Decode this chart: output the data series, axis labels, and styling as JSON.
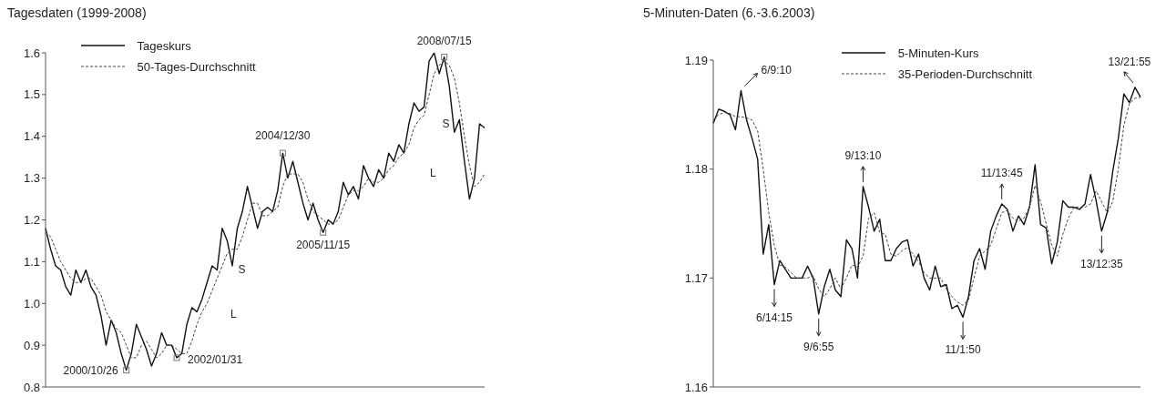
{
  "chart_data": [
    {
      "type": "line",
      "title": "Tagesdaten (1999-2008)",
      "tick_labels": "y",
      "legend": "top left",
      "categories": [
        null,
        null,
        null,
        null,
        null,
        null,
        null,
        null,
        null,
        null,
        null,
        null,
        null,
        null,
        null,
        null,
        null,
        null,
        null,
        null,
        null,
        null,
        null,
        null,
        null,
        null,
        null,
        null,
        null,
        null,
        null,
        null,
        null,
        null,
        null,
        null,
        null,
        null,
        null,
        null,
        null,
        null,
        null,
        null,
        null,
        null,
        null,
        null,
        null,
        null,
        null,
        null,
        null,
        null,
        null,
        null,
        null,
        null,
        null,
        null,
        null,
        null,
        null,
        null,
        null,
        null,
        null,
        null,
        null,
        null,
        null,
        null,
        null,
        null,
        null,
        null,
        null,
        null,
        null,
        null,
        null,
        null,
        null,
        null,
        null,
        null,
        null,
        null
      ],
      "series": [
        {
          "name": "Tageskurs",
          "color": "#111111",
          "line_style": "solid",
          "values": [
            1.18,
            1.13,
            1.09,
            1.08,
            1.04,
            1.02,
            1.08,
            1.05,
            1.08,
            1.04,
            1.02,
            0.97,
            0.9,
            0.96,
            0.93,
            0.88,
            0.84,
            0.88,
            0.95,
            0.92,
            0.89,
            0.85,
            0.88,
            0.93,
            0.9,
            0.9,
            0.87,
            0.88,
            0.95,
            0.99,
            0.98,
            1.01,
            1.05,
            1.09,
            1.08,
            1.18,
            1.15,
            1.09,
            1.18,
            1.22,
            1.28,
            1.23,
            1.18,
            1.22,
            1.23,
            1.22,
            1.27,
            1.36,
            1.3,
            1.34,
            1.29,
            1.24,
            1.2,
            1.24,
            1.2,
            1.17,
            1.2,
            1.19,
            1.22,
            1.29,
            1.26,
            1.28,
            1.25,
            1.33,
            1.3,
            1.28,
            1.32,
            1.3,
            1.36,
            1.34,
            1.38,
            1.36,
            1.43,
            1.48,
            1.46,
            1.47,
            1.58,
            1.6,
            1.55,
            1.59,
            1.52,
            1.41,
            1.44,
            1.34,
            1.25,
            1.3,
            1.43,
            1.42
          ]
        },
        {
          "name": "50-Tages-Durchschnitt",
          "color": "#444444",
          "line_style": "dashed",
          "values": [
            1.17,
            1.16,
            1.13,
            1.1,
            1.08,
            1.06,
            1.05,
            1.05,
            1.06,
            1.06,
            1.04,
            1.02,
            0.98,
            0.96,
            0.94,
            0.93,
            0.9,
            0.87,
            0.87,
            0.9,
            0.91,
            0.89,
            0.87,
            0.88,
            0.9,
            0.9,
            0.89,
            0.88,
            0.88,
            0.91,
            0.95,
            0.98,
            1.0,
            1.03,
            1.06,
            1.09,
            1.12,
            1.13,
            1.13,
            1.16,
            1.2,
            1.24,
            1.24,
            1.21,
            1.21,
            1.22,
            1.23,
            1.28,
            1.31,
            1.31,
            1.31,
            1.29,
            1.25,
            1.22,
            1.21,
            1.2,
            1.19,
            1.19,
            1.2,
            1.23,
            1.26,
            1.27,
            1.27,
            1.28,
            1.3,
            1.29,
            1.29,
            1.3,
            1.32,
            1.33,
            1.35,
            1.36,
            1.38,
            1.42,
            1.44,
            1.45,
            1.5,
            1.55,
            1.57,
            1.58,
            1.57,
            1.54,
            1.48,
            1.4,
            1.33,
            1.28,
            1.29,
            1.31
          ]
        }
      ],
      "ylim": [
        0.8,
        1.6
      ],
      "yticks": [
        0.8,
        0.9,
        {
          "value": 1.0,
          "label": "1.0"
        },
        1.1,
        1.2,
        1.3,
        1.4,
        1.5,
        1.6
      ],
      "annotations": [
        "2000/10/26",
        "2002/01/31",
        "2004/12/30",
        "2005/11/15",
        "2008/07/15",
        "S",
        "L",
        "S",
        "L"
      ]
    },
    {
      "type": "line",
      "title": "5-Minuten-Daten (6.-3.6.2003)",
      "tick_labels": "y",
      "legend": "top",
      "categories": [
        null,
        null,
        null,
        null,
        null,
        null,
        null,
        null,
        null,
        null,
        null,
        null,
        null,
        null,
        null,
        null,
        null,
        null,
        null,
        null,
        null,
        null,
        null,
        null,
        null,
        null,
        null,
        null,
        null,
        null,
        null,
        null,
        null,
        null,
        null,
        null,
        null,
        null,
        null,
        null,
        null,
        null,
        null,
        null,
        null,
        null,
        null,
        null,
        null,
        null,
        null,
        null,
        null,
        null,
        null,
        null,
        null,
        null,
        null,
        null,
        null,
        null,
        null,
        null,
        null,
        null,
        null,
        null,
        null,
        null,
        null,
        null,
        null,
        null,
        null,
        null,
        null,
        null
      ],
      "series": [
        {
          "name": "5-Minuten-Kurs",
          "color": "#111111",
          "line_style": "solid",
          "values": [
            1.1842,
            1.1855,
            1.1853,
            1.185,
            1.1836,
            1.1872,
            1.1845,
            1.1828,
            1.1809,
            1.1722,
            1.1749,
            1.1694,
            1.1716,
            1.1708,
            1.17,
            1.17,
            1.17,
            1.1711,
            1.17,
            1.1667,
            1.1692,
            1.1708,
            1.1689,
            1.1683,
            1.1735,
            1.1727,
            1.17,
            1.1784,
            1.1765,
            1.1743,
            1.1754,
            1.1716,
            1.1716,
            1.1727,
            1.1733,
            1.1735,
            1.1711,
            1.1722,
            1.17,
            1.1689,
            1.1711,
            1.1692,
            1.1694,
            1.1672,
            1.1675,
            1.1664,
            1.1683,
            1.1716,
            1.1727,
            1.1708,
            1.1743,
            1.1757,
            1.1768,
            1.1763,
            1.1743,
            1.1757,
            1.1749,
            1.1765,
            1.1804,
            1.1749,
            1.1746,
            1.1713,
            1.1733,
            1.1771,
            1.1765,
            1.1765,
            1.1763,
            1.1768,
            1.1795,
            1.1771,
            1.1743,
            1.176,
            1.1798,
            1.1828,
            1.1869,
            1.1861,
            1.1875,
            1.1866
          ]
        },
        {
          "name": "35-Perioden-Durchschnitt",
          "color": "#444444",
          "line_style": "dashed",
          "values": [
            1.1845,
            1.185,
            1.1852,
            1.1851,
            1.1848,
            1.1848,
            1.1847,
            1.1845,
            1.1835,
            1.18,
            1.176,
            1.173,
            1.1712,
            1.171,
            1.1705,
            1.17,
            1.17,
            1.17,
            1.1702,
            1.169,
            1.1683,
            1.169,
            1.17,
            1.169,
            1.17,
            1.1712,
            1.171,
            1.172,
            1.1755,
            1.176,
            1.1742,
            1.174,
            1.1722,
            1.172,
            1.1725,
            1.1728,
            1.1722,
            1.1715,
            1.1705,
            1.17,
            1.17,
            1.17,
            1.169,
            1.1683,
            1.1678,
            1.1675,
            1.168,
            1.17,
            1.172,
            1.1725,
            1.173,
            1.1745,
            1.176,
            1.1762,
            1.1755,
            1.1752,
            1.1755,
            1.1765,
            1.1785,
            1.177,
            1.175,
            1.173,
            1.172,
            1.174,
            1.1755,
            1.1765,
            1.1765,
            1.1765,
            1.1768,
            1.178,
            1.177,
            1.176,
            1.177,
            1.18,
            1.184,
            1.186,
            1.1865,
            1.1866
          ]
        }
      ],
      "ylim": [
        1.16,
        1.19
      ],
      "yticks": [
        1.16,
        1.17,
        1.18,
        1.19
      ],
      "annotations": [
        "6/9:10",
        "6/14:15",
        "9/6:55",
        "9/13:10",
        "11/1:50",
        "11/13:45",
        "13/12:35",
        "13/21:55"
      ]
    }
  ]
}
